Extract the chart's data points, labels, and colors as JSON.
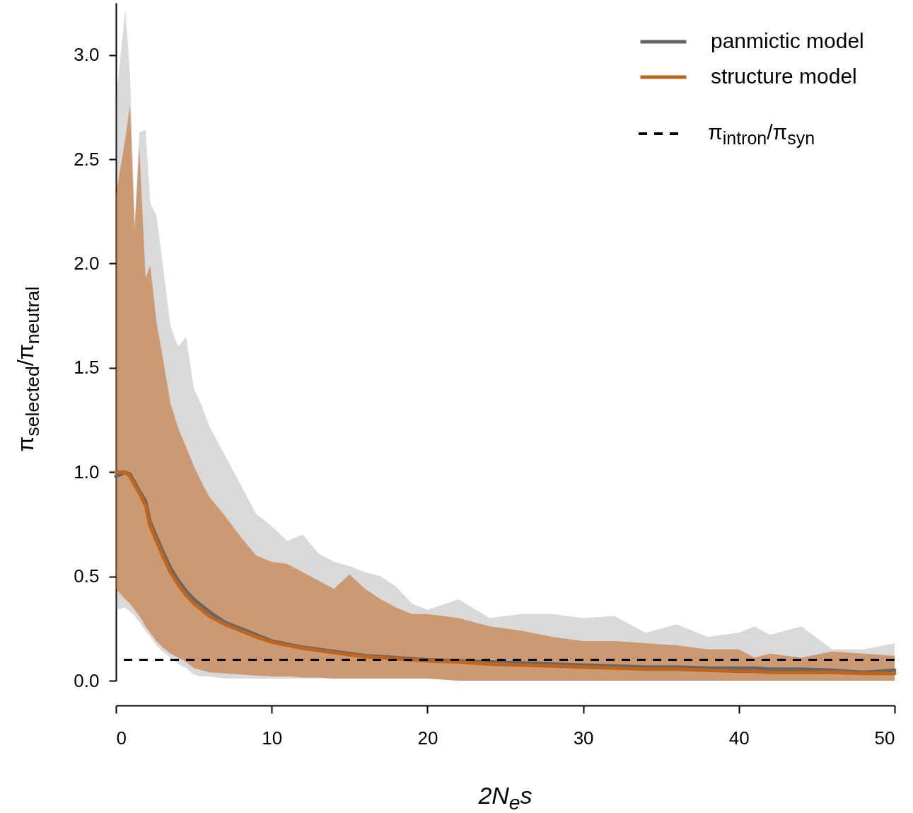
{
  "chart_data": {
    "type": "line",
    "xlabel": "2N$_{e}$s",
    "ylabel": "π$_{selected}$/π$_{neutral}$",
    "xlim": [
      0,
      50
    ],
    "xticks": [
      0,
      10,
      20,
      30,
      40,
      50
    ],
    "ylim": [
      0,
      3.25
    ],
    "yticks": [
      {
        "value": 0,
        "label": "0.0"
      },
      0.5,
      {
        "value": 1,
        "label": "1.0"
      },
      1.5,
      {
        "value": 2,
        "label": "2.0"
      },
      2.5,
      {
        "value": 3,
        "label": "3.0"
      }
    ],
    "legend": "top right",
    "series": [
      {
        "name": "panmictic model",
        "color": "#666666",
        "x": [
          0,
          0.6,
          0.9,
          1.2,
          1.5,
          1.9,
          2.2,
          2.6,
          3,
          3.5,
          4,
          4.5,
          5,
          5.5,
          6,
          7,
          8,
          9,
          10,
          11,
          12,
          13,
          14,
          15,
          16,
          17,
          18,
          19,
          20,
          22,
          24,
          26,
          28,
          30,
          32,
          34,
          36,
          38,
          40,
          41,
          42,
          44,
          46,
          48,
          50
        ],
        "values": [
          0.98,
          1.0,
          0.99,
          0.95,
          0.91,
          0.86,
          0.76,
          0.69,
          0.62,
          0.54,
          0.48,
          0.43,
          0.39,
          0.36,
          0.33,
          0.28,
          0.25,
          0.22,
          0.19,
          0.175,
          0.16,
          0.15,
          0.14,
          0.13,
          0.12,
          0.115,
          0.11,
          0.105,
          0.1,
          0.095,
          0.09,
          0.085,
          0.08,
          0.075,
          0.07,
          0.065,
          0.065,
          0.06,
          0.06,
          0.06,
          0.055,
          0.055,
          0.05,
          0.04,
          0.05
        ],
        "lower": [
          0.34,
          0.35,
          0.33,
          0.31,
          0.28,
          0.24,
          0.21,
          0.17,
          0.14,
          0.11,
          0.08,
          0.06,
          0.03,
          0.02,
          0.02,
          0.01,
          0.01,
          0.01,
          0.01,
          0.01,
          0.01,
          0.01,
          0.01,
          0.01,
          0.01,
          0.01,
          0.01,
          0.01,
          0.01,
          0,
          0,
          0,
          0,
          0,
          0,
          0,
          0,
          0,
          0,
          0,
          0,
          0,
          0,
          0,
          0
        ],
        "upper": [
          2.78,
          3.22,
          2.91,
          2.2,
          2.63,
          2.64,
          2.29,
          2.23,
          2.0,
          1.7,
          1.6,
          1.65,
          1.4,
          1.32,
          1.22,
          1.08,
          0.94,
          0.8,
          0.74,
          0.67,
          0.7,
          0.61,
          0.57,
          0.55,
          0.52,
          0.5,
          0.45,
          0.37,
          0.34,
          0.39,
          0.3,
          0.32,
          0.32,
          0.3,
          0.31,
          0.23,
          0.27,
          0.21,
          0.23,
          0.26,
          0.22,
          0.26,
          0.15,
          0.15,
          0.18
        ]
      },
      {
        "name": "structure model",
        "color": "#c0651e",
        "x": [
          0,
          0.6,
          0.9,
          1.2,
          1.5,
          1.9,
          2.2,
          2.6,
          3,
          3.5,
          4,
          4.5,
          5,
          5.5,
          6,
          7,
          8,
          9,
          10,
          11,
          12,
          13,
          14,
          15,
          16,
          17,
          18,
          19,
          20,
          22,
          24,
          26,
          28,
          30,
          32,
          34,
          36,
          38,
          40,
          41,
          42,
          44,
          46,
          48,
          50
        ],
        "values": [
          1.0,
          1.0,
          0.98,
          0.94,
          0.9,
          0.84,
          0.74,
          0.67,
          0.6,
          0.52,
          0.46,
          0.41,
          0.37,
          0.34,
          0.31,
          0.27,
          0.24,
          0.21,
          0.185,
          0.17,
          0.155,
          0.145,
          0.135,
          0.125,
          0.115,
          0.11,
          0.105,
          0.1,
          0.095,
          0.09,
          0.08,
          0.075,
          0.07,
          0.065,
          0.06,
          0.055,
          0.055,
          0.05,
          0.045,
          0.045,
          0.04,
          0.04,
          0.04,
          0.035,
          0.035
        ],
        "lower": [
          0.44,
          0.39,
          0.37,
          0.34,
          0.31,
          0.26,
          0.23,
          0.19,
          0.16,
          0.13,
          0.11,
          0.09,
          0.06,
          0.05,
          0.04,
          0.035,
          0.03,
          0.025,
          0.02,
          0.02,
          0.015,
          0.015,
          0.01,
          0.01,
          0.01,
          0.01,
          0.01,
          0.01,
          0.01,
          0,
          0,
          0,
          0,
          0,
          0,
          0,
          0,
          0,
          0,
          0,
          0,
          0,
          0,
          0,
          0
        ],
        "upper": [
          2.33,
          2.6,
          2.76,
          2.16,
          2.56,
          1.93,
          1.99,
          1.72,
          1.55,
          1.33,
          1.21,
          1.12,
          1.03,
          0.95,
          0.88,
          0.79,
          0.69,
          0.6,
          0.57,
          0.56,
          0.52,
          0.48,
          0.44,
          0.51,
          0.44,
          0.39,
          0.35,
          0.32,
          0.32,
          0.3,
          0.26,
          0.24,
          0.21,
          0.19,
          0.19,
          0.18,
          0.17,
          0.15,
          0.15,
          0.11,
          0.13,
          0.11,
          0.14,
          0.13,
          0.12
        ]
      }
    ],
    "ref_lines": [
      {
        "axis": "y",
        "value": 0.1,
        "label": "π$_{intron}$/π$_{syn}$",
        "color": "#000000",
        "line_style": "dashed"
      }
    ]
  }
}
